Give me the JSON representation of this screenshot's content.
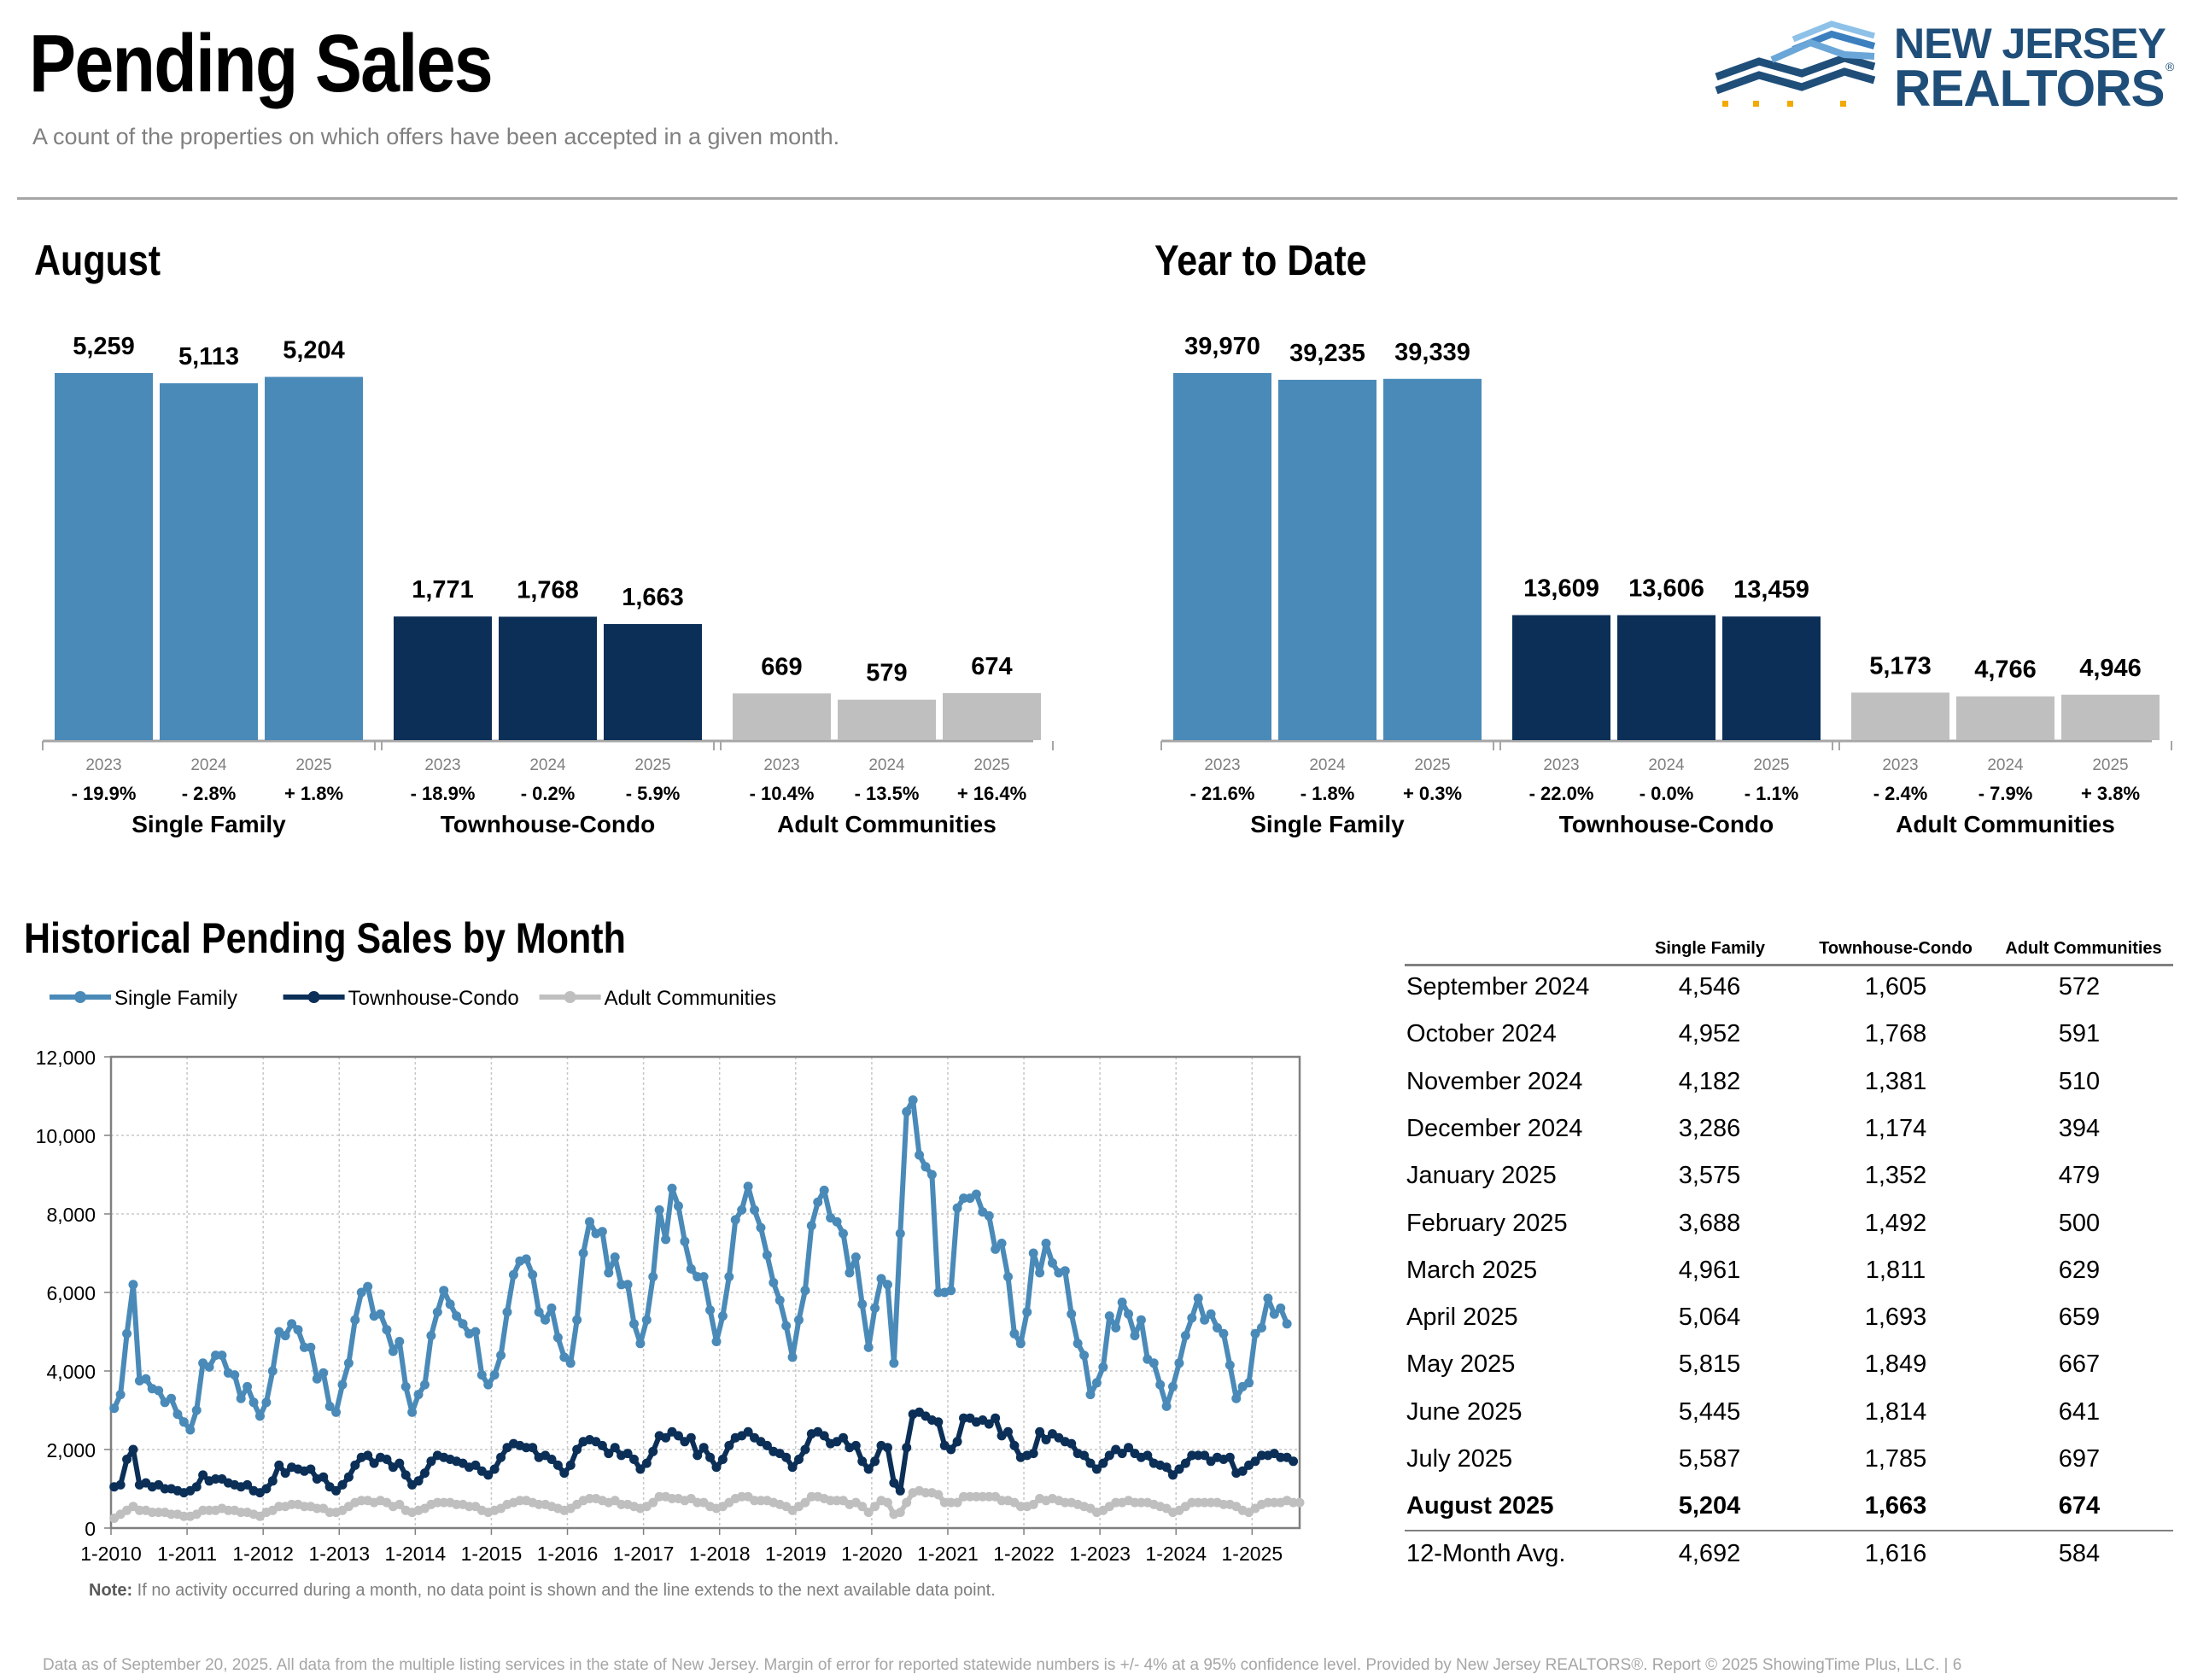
{
  "header": {
    "title": "Pending Sales",
    "subtitle": "A count of the properties on which offers have been accepted in a given month.",
    "logo_line1": "NEW JERSEY",
    "logo_line2": "REALTORS",
    "logo_reg": "®"
  },
  "colors": {
    "single_family": "#4a8ab8",
    "townhouse_condo": "#0b2f57",
    "adult_communities": "#bfbfbf"
  },
  "chart_data": [
    {
      "type": "bar",
      "title": "August",
      "groups": [
        {
          "name": "Single Family",
          "years": [
            "2023",
            "2024",
            "2025"
          ],
          "values": [
            5259,
            5113,
            5204
          ],
          "labels": [
            "5,259",
            "5,113",
            "5,204"
          ],
          "changes": [
            "- 19.9%",
            "- 2.8%",
            "+ 1.8%"
          ]
        },
        {
          "name": "Townhouse-Condo",
          "years": [
            "2023",
            "2024",
            "2025"
          ],
          "values": [
            1771,
            1768,
            1663
          ],
          "labels": [
            "1,771",
            "1,768",
            "1,663"
          ],
          "changes": [
            "- 18.9%",
            "- 0.2%",
            "- 5.9%"
          ]
        },
        {
          "name": "Adult Communities",
          "years": [
            "2023",
            "2024",
            "2025"
          ],
          "values": [
            669,
            579,
            674
          ],
          "labels": [
            "669",
            "579",
            "674"
          ],
          "changes": [
            "- 10.4%",
            "- 13.5%",
            "+ 16.4%"
          ]
        }
      ]
    },
    {
      "type": "bar",
      "title": "Year to Date",
      "groups": [
        {
          "name": "Single Family",
          "years": [
            "2023",
            "2024",
            "2025"
          ],
          "values": [
            39970,
            39235,
            39339
          ],
          "labels": [
            "39,970",
            "39,235",
            "39,339"
          ],
          "changes": [
            "- 21.6%",
            "- 1.8%",
            "+ 0.3%"
          ]
        },
        {
          "name": "Townhouse-Condo",
          "years": [
            "2023",
            "2024",
            "2025"
          ],
          "values": [
            13609,
            13606,
            13459
          ],
          "labels": [
            "13,609",
            "13,606",
            "13,459"
          ],
          "changes": [
            "- 22.0%",
            "- 0.0%",
            "- 1.1%"
          ]
        },
        {
          "name": "Adult Communities",
          "years": [
            "2023",
            "2024",
            "2025"
          ],
          "values": [
            5173,
            4766,
            4946
          ],
          "labels": [
            "5,173",
            "4,766",
            "4,946"
          ],
          "changes": [
            "- 2.4%",
            "- 7.9%",
            "+ 3.8%"
          ]
        }
      ]
    },
    {
      "type": "line",
      "title": "Historical Pending Sales by Month",
      "ylim": [
        0,
        12000
      ],
      "yticks": [
        0,
        2000,
        4000,
        6000,
        8000,
        10000,
        12000
      ],
      "ytick_labels": [
        "0",
        "2,000",
        "4,000",
        "6,000",
        "8,000",
        "10,000",
        "12,000"
      ],
      "xtick_labels": [
        "1-2010",
        "1-2011",
        "1-2012",
        "1-2013",
        "1-2014",
        "1-2015",
        "1-2016",
        "1-2017",
        "1-2018",
        "1-2019",
        "1-2020",
        "1-2021",
        "1-2022",
        "1-2023",
        "1-2024",
        "1-2025"
      ],
      "x_start": "2010-01",
      "x_end": "2025-08",
      "grid": true,
      "legend": "top-left",
      "series": [
        {
          "name": "Single Family",
          "monthly_from_2010_01": [
            3050,
            3400,
            4950,
            6200,
            3750,
            3800,
            3550,
            3500,
            3200,
            3300,
            2900,
            2700,
            2500,
            3000,
            4200,
            4100,
            4400,
            4400,
            3950,
            3900,
            3300,
            3600,
            3200,
            2850,
            3200,
            4000,
            5000,
            4900,
            5200,
            5050,
            4600,
            4600,
            3800,
            3950,
            3100,
            2950,
            3650,
            4200,
            5300,
            6000,
            6150,
            5400,
            5450,
            5050,
            4500,
            4750,
            3600,
            2950,
            3400,
            3650,
            4900,
            5500,
            6050,
            5700,
            5400,
            5200,
            4950,
            5000,
            3900,
            3650,
            3900,
            4400,
            5500,
            6450,
            6800,
            6850,
            6450,
            5500,
            5300,
            5600,
            4850,
            4350,
            4200,
            5300,
            7000,
            7800,
            7500,
            7550,
            6500,
            6900,
            6200,
            6200,
            5200,
            4700,
            5300,
            6400,
            8100,
            7350,
            8650,
            8200,
            7300,
            6600,
            6400,
            6400,
            5550,
            4750,
            5400,
            6400,
            7850,
            8100,
            8700,
            8100,
            7650,
            6950,
            6250,
            5800,
            5150,
            4350,
            5300,
            6050,
            7700,
            8300,
            8600,
            7900,
            7800,
            7500,
            6500,
            6900,
            5700,
            4600,
            5600,
            6350,
            6200,
            4200,
            7500,
            10600,
            10900,
            9500,
            9200,
            9000,
            6000,
            6000,
            6050,
            8150,
            8400,
            8400,
            8500,
            8050,
            7950,
            7100,
            7250,
            6400,
            4950,
            4700,
            5500,
            7000,
            6500,
            7250,
            6750,
            6500,
            6550,
            5450,
            4700,
            4400,
            3400,
            3700,
            4100,
            5400,
            5100,
            5750,
            5450,
            4900,
            5300,
            4300,
            4200,
            3650,
            3100,
            3600,
            4200,
            4900,
            5350,
            5850,
            5300,
            5450,
            5100,
            4950,
            4150,
            3300,
            3600,
            3700,
            4950,
            5100,
            5850,
            5450,
            5600,
            5200
          ]
        },
        {
          "name": "Townhouse-Condo",
          "monthly_from_2010_01": [
            1050,
            1100,
            1750,
            2000,
            1100,
            1150,
            1050,
            1100,
            1000,
            1000,
            950,
            900,
            950,
            1050,
            1350,
            1200,
            1250,
            1250,
            1150,
            1100,
            1050,
            1100,
            950,
            900,
            1000,
            1200,
            1600,
            1400,
            1550,
            1500,
            1450,
            1500,
            1250,
            1300,
            1050,
            950,
            1100,
            1300,
            1600,
            1800,
            1850,
            1650,
            1800,
            1750,
            1550,
            1650,
            1350,
            1100,
            1200,
            1400,
            1700,
            1850,
            1800,
            1750,
            1700,
            1650,
            1550,
            1600,
            1450,
            1350,
            1500,
            1800,
            2050,
            2150,
            2100,
            2050,
            2050,
            1800,
            1850,
            1750,
            1600,
            1400,
            1600,
            2000,
            2200,
            2250,
            2200,
            2100,
            1900,
            2050,
            1850,
            1900,
            1750,
            1500,
            1650,
            1950,
            2350,
            2300,
            2450,
            2350,
            2200,
            2300,
            1850,
            2050,
            1800,
            1550,
            1750,
            2100,
            2300,
            2350,
            2450,
            2300,
            2200,
            2100,
            1950,
            1900,
            1800,
            1550,
            1750,
            2000,
            2400,
            2450,
            2350,
            2150,
            2200,
            2300,
            2050,
            2100,
            1700,
            1500,
            1700,
            2100,
            2050,
            1150,
            950,
            2050,
            2900,
            2950,
            2850,
            2750,
            2700,
            2100,
            2000,
            2200,
            2800,
            2800,
            2700,
            2750,
            2650,
            2800,
            2350,
            2450,
            2100,
            1800,
            1850,
            1900,
            2450,
            2250,
            2400,
            2300,
            2200,
            2150,
            1900,
            1850,
            1650,
            1500,
            1650,
            1850,
            2000,
            1900,
            2050,
            1900,
            1800,
            1850,
            1650,
            1600,
            1550,
            1350,
            1500,
            1650,
            1850,
            1850,
            1850,
            1700,
            1800,
            1750,
            1800,
            1400,
            1450,
            1600,
            1700,
            1850,
            1850,
            1900,
            1800,
            1800,
            1700
          ]
        },
        {
          "name": "Adult Communities",
          "monthly_from_2010_01": [
            250,
            350,
            450,
            550,
            450,
            450,
            400,
            400,
            400,
            350,
            350,
            300,
            300,
            350,
            450,
            450,
            450,
            500,
            450,
            450,
            400,
            400,
            350,
            300,
            400,
            450,
            550,
            550,
            600,
            600,
            550,
            550,
            500,
            500,
            400,
            400,
            450,
            550,
            650,
            700,
            700,
            650,
            700,
            650,
            550,
            600,
            450,
            400,
            450,
            500,
            600,
            650,
            650,
            650,
            600,
            600,
            550,
            550,
            450,
            400,
            450,
            500,
            600,
            650,
            700,
            700,
            650,
            600,
            600,
            550,
            500,
            450,
            500,
            600,
            700,
            750,
            750,
            700,
            650,
            700,
            600,
            600,
            550,
            500,
            550,
            650,
            800,
            800,
            750,
            750,
            700,
            750,
            650,
            650,
            550,
            500,
            550,
            650,
            750,
            800,
            800,
            700,
            700,
            700,
            650,
            600,
            550,
            450,
            550,
            650,
            800,
            800,
            750,
            700,
            700,
            700,
            600,
            650,
            550,
            400,
            550,
            700,
            650,
            350,
            400,
            650,
            900,
            950,
            900,
            900,
            850,
            650,
            650,
            650,
            800,
            800,
            800,
            800,
            800,
            800,
            700,
            700,
            650,
            550,
            550,
            600,
            750,
            700,
            750,
            700,
            650,
            650,
            600,
            550,
            500,
            400,
            450,
            550,
            650,
            650,
            700,
            650,
            650,
            650,
            600,
            550,
            500,
            400,
            450,
            550,
            650,
            650,
            650,
            650,
            650,
            600,
            600,
            550,
            450,
            400,
            500,
            600,
            650,
            650,
            650,
            700,
            650,
            650
          ]
        }
      ]
    }
  ],
  "table": {
    "headers": [
      "Single Family",
      "Townhouse-Condo",
      "Adult Communities"
    ],
    "rows": [
      {
        "month": "September 2024",
        "sf": "4,546",
        "tc": "1,605",
        "ac": "572"
      },
      {
        "month": "October 2024",
        "sf": "4,952",
        "tc": "1,768",
        "ac": "591"
      },
      {
        "month": "November 2024",
        "sf": "4,182",
        "tc": "1,381",
        "ac": "510"
      },
      {
        "month": "December 2024",
        "sf": "3,286",
        "tc": "1,174",
        "ac": "394"
      },
      {
        "month": "January 2025",
        "sf": "3,575",
        "tc": "1,352",
        "ac": "479"
      },
      {
        "month": "February 2025",
        "sf": "3,688",
        "tc": "1,492",
        "ac": "500"
      },
      {
        "month": "March 2025",
        "sf": "4,961",
        "tc": "1,811",
        "ac": "629"
      },
      {
        "month": "April 2025",
        "sf": "5,064",
        "tc": "1,693",
        "ac": "659"
      },
      {
        "month": "May 2025",
        "sf": "5,815",
        "tc": "1,849",
        "ac": "667"
      },
      {
        "month": "June 2025",
        "sf": "5,445",
        "tc": "1,814",
        "ac": "641"
      },
      {
        "month": "July 2025",
        "sf": "5,587",
        "tc": "1,785",
        "ac": "697"
      },
      {
        "month": "August 2025",
        "sf": "5,204",
        "tc": "1,663",
        "ac": "674"
      },
      {
        "month": "12-Month Avg.",
        "sf": "4,692",
        "tc": "1,616",
        "ac": "584"
      }
    ]
  },
  "footnote_label": "Note:",
  "footnote_text": " If no activity occurred during a month, no data point is shown and the line extends to the next available data point.",
  "footer": "Data as of September 20, 2025. All data from the multiple listing services in the state of New Jersey. Margin of error for reported statewide numbers is +/- 4% at a 95% confidence level. Provided by New Jersey REALTORS®. Report © 2025 ShowingTime Plus, LLC.  |  6"
}
